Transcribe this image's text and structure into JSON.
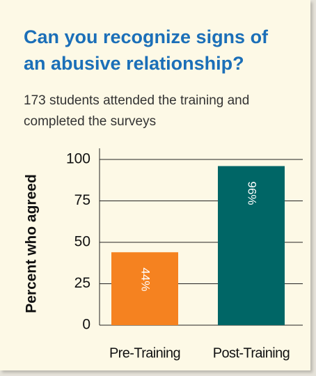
{
  "chart_data": {
    "type": "bar",
    "title": "Can you recognize signs of an abusive relationship?",
    "subtitle": "173 students attended the training and completed the surveys",
    "y_label": "Percent who agreed",
    "categories": [
      "Pre-Training",
      "Post-Training"
    ],
    "values": [
      44,
      96
    ],
    "value_labels": [
      "44%",
      "96%"
    ],
    "colors": [
      "#f58220",
      "#006666"
    ],
    "ylim": [
      0,
      100
    ],
    "yticks": [
      0,
      25,
      50,
      75,
      100
    ],
    "grid": true
  }
}
